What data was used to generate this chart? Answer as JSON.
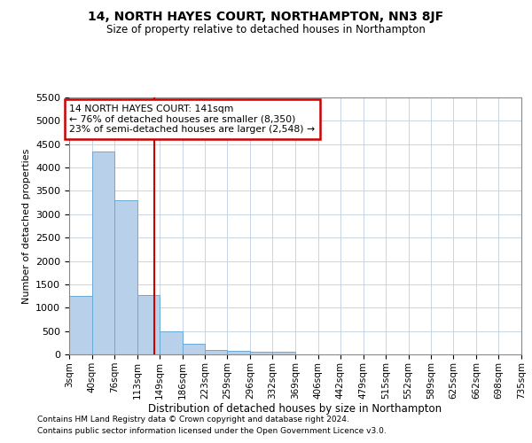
{
  "title": "14, NORTH HAYES COURT, NORTHAMPTON, NN3 8JF",
  "subtitle": "Size of property relative to detached houses in Northampton",
  "xlabel": "Distribution of detached houses by size in Northampton",
  "ylabel": "Number of detached properties",
  "footnote1": "Contains HM Land Registry data © Crown copyright and database right 2024.",
  "footnote2": "Contains public sector information licensed under the Open Government Licence v3.0.",
  "annotation_line1": "14 NORTH HAYES COURT: 141sqm",
  "annotation_line2": "← 76% of detached houses are smaller (8,350)",
  "annotation_line3": "23% of semi-detached houses are larger (2,548) →",
  "bin_edges": [
    3,
    40,
    76,
    113,
    149,
    186,
    223,
    259,
    296,
    332,
    369,
    406,
    442,
    479,
    515,
    552,
    589,
    625,
    662,
    698,
    735
  ],
  "bin_counts": [
    1250,
    4350,
    3300,
    1270,
    490,
    220,
    100,
    70,
    60,
    60,
    0,
    0,
    0,
    0,
    0,
    0,
    0,
    0,
    0,
    0
  ],
  "property_size": 141,
  "bar_color": "#b8d0ea",
  "bar_edge_color": "#6aaad4",
  "vline_color": "#cc0000",
  "annotation_box_color": "#cc0000",
  "background_color": "#ffffff",
  "grid_color": "#c8d4e4",
  "ylim": [
    0,
    5500
  ],
  "yticks": [
    0,
    500,
    1000,
    1500,
    2000,
    2500,
    3000,
    3500,
    4000,
    4500,
    5000,
    5500
  ]
}
